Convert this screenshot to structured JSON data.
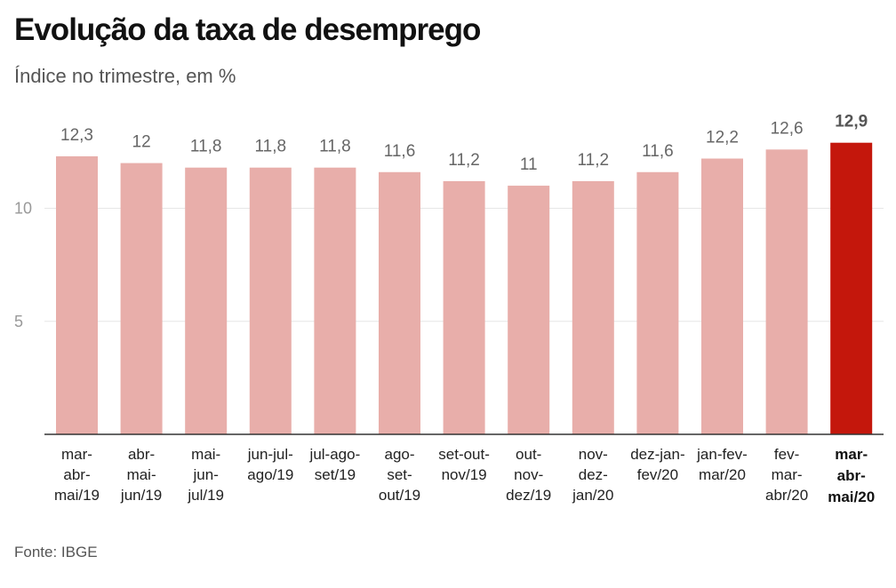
{
  "title": "Evolução da taxa de desemprego",
  "subtitle": "Índice no trimestre, em %",
  "source": "Fonte: IBGE",
  "colors": {
    "bar": "#E8AEAA",
    "highlight": "#C4170C",
    "grid": "#E6E6E6",
    "axis": "#333333"
  },
  "chart_data": {
    "type": "bar",
    "title": "Evolução da taxa de desemprego",
    "subtitle": "Índice no trimestre, em %",
    "categories": [
      [
        "mar-",
        "abr-",
        "mai/19"
      ],
      [
        "abr-",
        "mai-",
        "jun/19"
      ],
      [
        "mai-",
        "jun-",
        "jul/19"
      ],
      [
        "jun-jul-",
        "ago/19"
      ],
      [
        "jul-ago-",
        "set/19"
      ],
      [
        "ago-",
        "set-",
        "out/19"
      ],
      [
        "set-out-",
        "nov/19"
      ],
      [
        "out-",
        "nov-",
        "dez/19"
      ],
      [
        "nov-",
        "dez-",
        "jan/20"
      ],
      [
        "dez-jan-",
        "fev/20"
      ],
      [
        "jan-fev-",
        "mar/20"
      ],
      [
        "fev-",
        "mar-",
        "abr/20"
      ],
      [
        "mar-",
        "abr-",
        "mai/20"
      ]
    ],
    "values": [
      12.3,
      12,
      11.8,
      11.8,
      11.8,
      11.6,
      11.2,
      11,
      11.2,
      11.6,
      12.2,
      12.6,
      12.9
    ],
    "value_labels": [
      "12,3",
      "12",
      "11,8",
      "11,8",
      "11,8",
      "11,6",
      "11,2",
      "11",
      "11,2",
      "11,6",
      "12,2",
      "12,6",
      "12,9"
    ],
    "highlight_index": 12,
    "yticks": [
      5,
      10
    ],
    "ytick_labels": [
      "5",
      "10"
    ],
    "ylim": [
      0,
      14.2
    ],
    "grid": true,
    "legend": "none",
    "xlabel": "",
    "ylabel": ""
  }
}
